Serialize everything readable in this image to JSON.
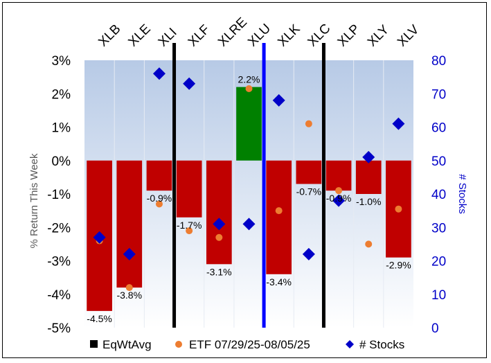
{
  "chart_data": {
    "type": "bar",
    "categories": [
      "XLB",
      "XLE",
      "XLI",
      "XLF",
      "XLRE",
      "XLU",
      "XLK",
      "XLC",
      "XLP",
      "XLY",
      "XLV"
    ],
    "series": [
      {
        "name": "EqWtAvg",
        "kind": "bar",
        "axis": "left",
        "unit": "%",
        "values": [
          -4.5,
          -3.8,
          -0.9,
          -1.7,
          -3.1,
          2.2,
          -3.4,
          -0.7,
          -0.9,
          -1.0,
          -2.9
        ],
        "labels": [
          "-4.5%",
          "-3.8%",
          "-0.9%",
          "-1.7%",
          "-3.1%",
          "2.2%",
          "-3.4%",
          "-0.7%",
          "-0.9%",
          "-1.0%",
          "-2.9%"
        ],
        "colors": [
          "#c00000",
          "#c00000",
          "#c00000",
          "#c00000",
          "#c00000",
          "#008000",
          "#c00000",
          "#c00000",
          "#c00000",
          "#c00000",
          "#c00000"
        ]
      },
      {
        "name": "ETF 07/29/25-08/05/25",
        "kind": "scatter",
        "axis": "left",
        "unit": "%",
        "values": [
          -2.4,
          -3.8,
          -1.3,
          -2.1,
          -2.3,
          2.15,
          -1.5,
          1.1,
          -0.9,
          -2.5,
          -1.45
        ]
      },
      {
        "name": "# Stocks",
        "kind": "scatter",
        "axis": "right",
        "unit": "count",
        "values": [
          27,
          22,
          76,
          73,
          31,
          31,
          68,
          22,
          38,
          51,
          61
        ]
      }
    ],
    "ylabel": "% Return This Week",
    "y2label": "# Stocks",
    "ylim": [
      -5,
      3
    ],
    "y2lim": [
      0,
      80
    ],
    "yticks": [
      "3%",
      "2%",
      "1%",
      "0%",
      "-1%",
      "-2%",
      "-3%",
      "-4%",
      "-5%"
    ],
    "y2ticks": [
      "80",
      "70",
      "60",
      "50",
      "40",
      "30",
      "20",
      "10",
      "0"
    ],
    "separators": [
      {
        "after": "XLI",
        "color": "#000000"
      },
      {
        "after": "XLU",
        "color": "#0000ff"
      },
      {
        "after": "XLC",
        "color": "#000000"
      }
    ],
    "legend": [
      "EqWtAvg",
      "ETF 07/29/25-08/05/25",
      "# Stocks"
    ],
    "legend_position": "bottom"
  },
  "colors": {
    "negative_bar": "#c00000",
    "positive_bar": "#008000",
    "etf_marker": "#ed7d31",
    "stocks_marker": "#0000c8",
    "right_axis": "#0000c8",
    "plot_gradient_top": "#b7cae6",
    "plot_gradient_bottom": "#ffffff"
  }
}
